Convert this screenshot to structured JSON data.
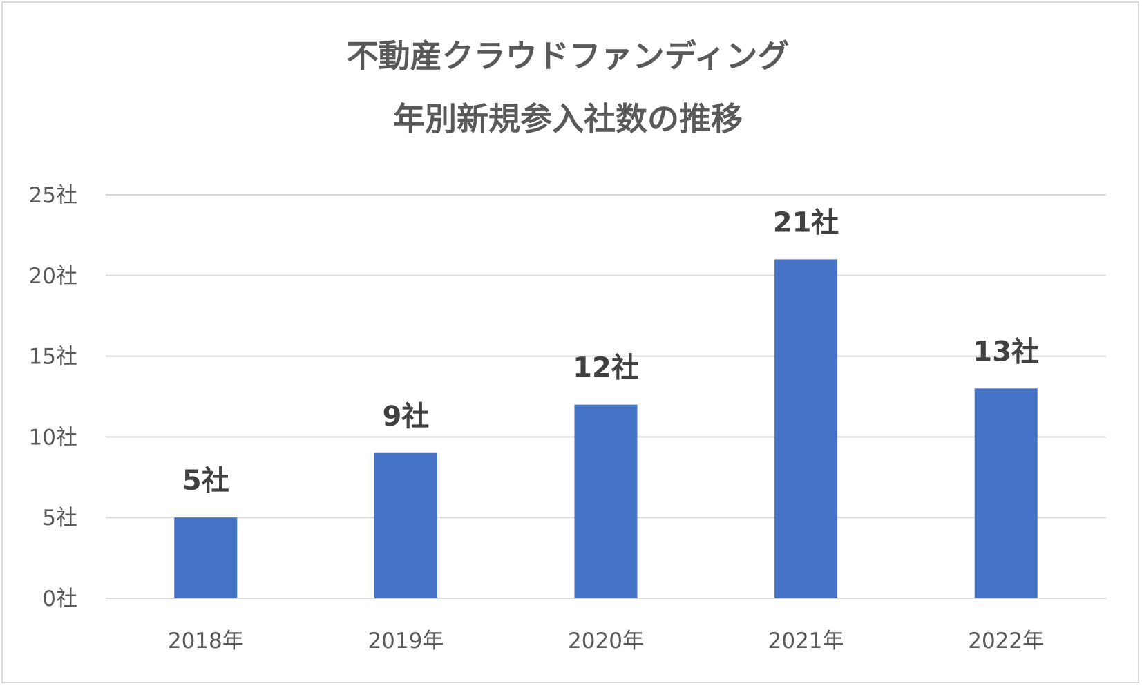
{
  "chart_data": {
    "type": "bar",
    "title_lines": [
      "不動産クラウドファンディング",
      "年別新規参入社数の推移"
    ],
    "categories": [
      "2018年",
      "2019年",
      "2020年",
      "2021年",
      "2022年"
    ],
    "values": [
      5,
      9,
      12,
      21,
      13
    ],
    "data_labels": [
      "5社",
      "9社",
      "12社",
      "21社",
      "13社"
    ],
    "y_ticks": [
      0,
      5,
      10,
      15,
      20,
      25
    ],
    "y_tick_labels": [
      "0社",
      "5社",
      "10社",
      "15社",
      "20社",
      "25社"
    ],
    "ylim": [
      0,
      25
    ],
    "xlabel": "",
    "ylabel": "",
    "grid": true,
    "legend": "none",
    "colors": {
      "bar": "#4472c4",
      "grid": "#d9d9d9",
      "title": "#595959",
      "tick_text": "#595959",
      "data_label_text": "#404040"
    }
  }
}
